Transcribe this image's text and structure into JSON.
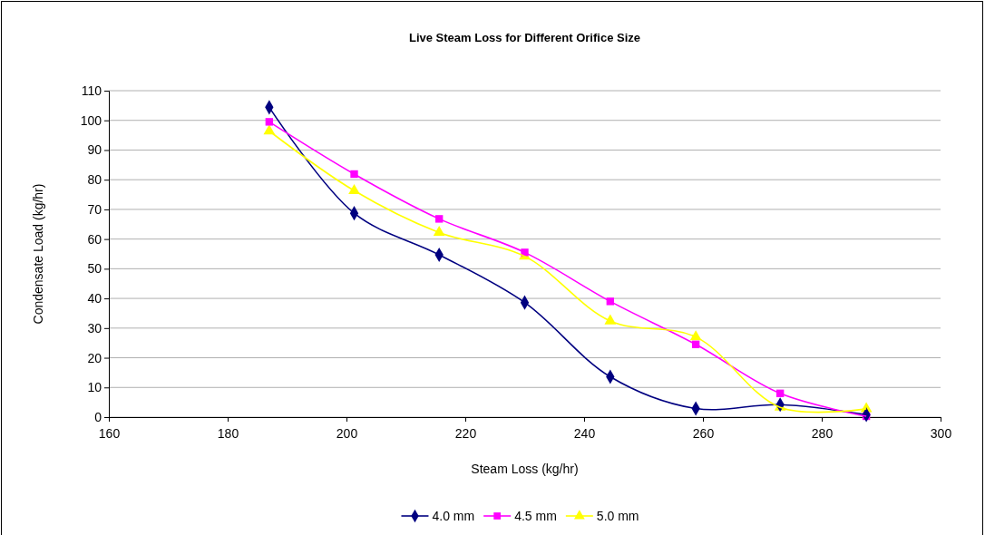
{
  "chart_data": {
    "type": "line",
    "title": "Live Steam Loss for Different Orifice Size",
    "xlabel": "Steam Loss (kg/hr)",
    "ylabel": "Condensate Load (kg/hr)",
    "x": [
      187,
      201.3,
      215.6,
      230,
      244.4,
      258.8,
      273,
      287.5
    ],
    "series": [
      {
        "name": "4.0 mm",
        "color": "#000080",
        "marker": "diamond",
        "values": [
          104.4,
          68.7,
          54.7,
          38.6,
          13.6,
          2.9,
          4.2,
          0.8
        ]
      },
      {
        "name": "4.5 mm",
        "color": "#ff00ff",
        "marker": "square",
        "values": [
          99.5,
          81.9,
          66.8,
          55.5,
          39.0,
          24.5,
          8.0,
          0.3
        ]
      },
      {
        "name": "5.0 mm",
        "color": "#ffff00",
        "marker": "triangle",
        "values": [
          96.4,
          76.3,
          62.2,
          54.2,
          32.4,
          27.0,
          3.3,
          2.8
        ]
      }
    ],
    "xlim": [
      160,
      300
    ],
    "xticks": [
      160,
      180,
      200,
      220,
      240,
      260,
      280,
      300
    ],
    "ylim": [
      0,
      110
    ],
    "yticks": [
      0,
      10,
      20,
      30,
      40,
      50,
      60,
      70,
      80,
      90,
      100,
      110
    ],
    "grid": "y",
    "legend": "bottom"
  }
}
